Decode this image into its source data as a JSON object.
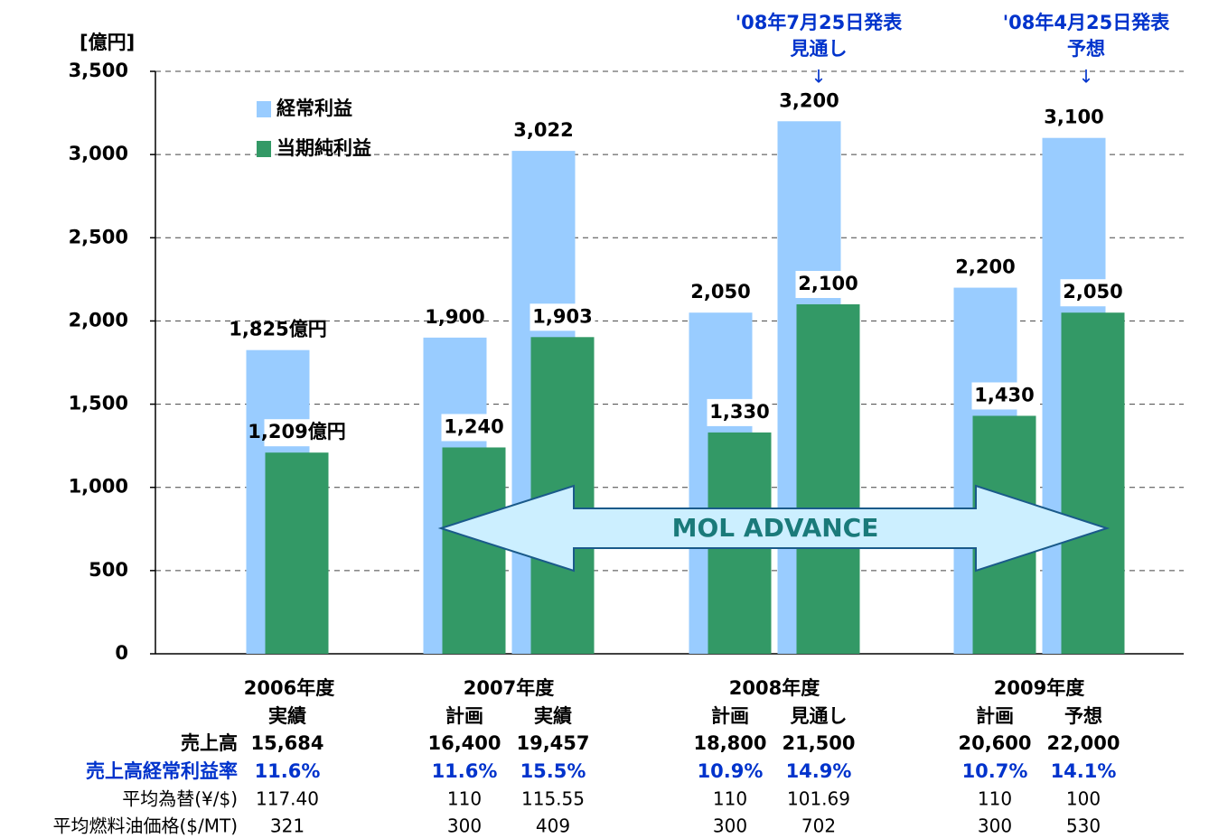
{
  "chart_data": {
    "type": "bar",
    "y_unit_label": "[億円]",
    "groups": [
      "2006年度",
      "2007年度",
      "2008年度",
      "2009年度"
    ],
    "categories": [
      "実績",
      "計画",
      "実績",
      "計画",
      "見通し",
      "計画",
      "予想"
    ],
    "series": [
      {
        "name": "経常利益",
        "color": "#99ccff",
        "values": [
          1825,
          1900,
          3022,
          2050,
          3200,
          2200,
          3100
        ],
        "value_labels": [
          "1,825億円",
          "1,900",
          "3,022",
          "2,050",
          "3,200",
          "2,200",
          "3,100"
        ]
      },
      {
        "name": "当期純利益",
        "color": "#339966",
        "values": [
          1209,
          1240,
          1903,
          1330,
          2100,
          1430,
          2050
        ],
        "value_labels": [
          "1,209億円",
          "1,240",
          "1,903",
          "1,330",
          "2,100",
          "1,430",
          "2,050"
        ]
      }
    ],
    "ylim": [
      0,
      3500
    ],
    "yticks": [
      0,
      500,
      {
        "value": 1000,
        "label": "1,000"
      },
      {
        "value": 1500,
        "label": "1,500"
      },
      {
        "value": 2000,
        "label": "2,000"
      },
      {
        "value": 2500,
        "label": "2,500"
      },
      {
        "value": 3000,
        "label": "3,000"
      },
      {
        "value": 3500,
        "label": "3,500"
      }
    ],
    "grid": true,
    "legend": "upper left",
    "annotations": [
      {
        "lines": [
          "'08年7月25日発表",
          "見通し"
        ],
        "arrow": "↓"
      },
      {
        "lines": [
          "'08年4月25日発表",
          "予想"
        ],
        "arrow": "↓"
      }
    ],
    "banner": "MOL ADVANCE"
  },
  "table": {
    "rows": [
      {
        "label": "売上高",
        "values": [
          "15,684",
          "16,400",
          "19,457",
          "18,800",
          "21,500",
          "20,600",
          "22,000"
        ]
      },
      {
        "label": "売上高経常利益率",
        "values": [
          "11.6%",
          "11.6%",
          "15.5%",
          "10.9%",
          "14.9%",
          "10.7%",
          "14.1%"
        ]
      },
      {
        "label": "平均為替(¥/$)",
        "values": [
          "117.40",
          "110",
          "115.55",
          "110",
          "101.69",
          "110",
          "100"
        ]
      },
      {
        "label": "平均燃料油価格($/MT)",
        "values": [
          "321",
          "300",
          "409",
          "300",
          "702",
          "300",
          "530"
        ]
      }
    ]
  }
}
